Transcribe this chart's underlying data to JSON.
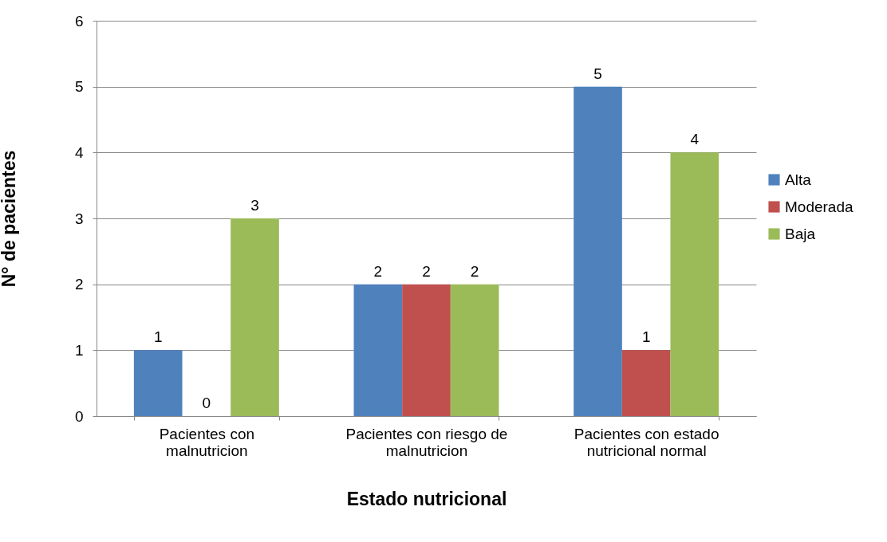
{
  "chart_data": {
    "type": "bar",
    "xlabel": "Estado nutricional",
    "ylabel": "N° de pacientes",
    "categories": [
      "Pacientes con malnutricion",
      "Pacientes con riesgo de malnutricion",
      "Pacientes con estado nutricional normal"
    ],
    "series": [
      {
        "name": "Alta",
        "color": "#4f81bd",
        "values": [
          1,
          2,
          5
        ]
      },
      {
        "name": "Moderada",
        "color": "#c0504d",
        "values": [
          0,
          2,
          1
        ]
      },
      {
        "name": "Baja",
        "color": "#9bbb59",
        "values": [
          3,
          2,
          4
        ]
      }
    ],
    "ylim": [
      0,
      6
    ],
    "yticks": [
      0,
      1,
      2,
      3,
      4,
      5,
      6
    ],
    "grid": "y",
    "legend": "right",
    "data_labels": true
  }
}
